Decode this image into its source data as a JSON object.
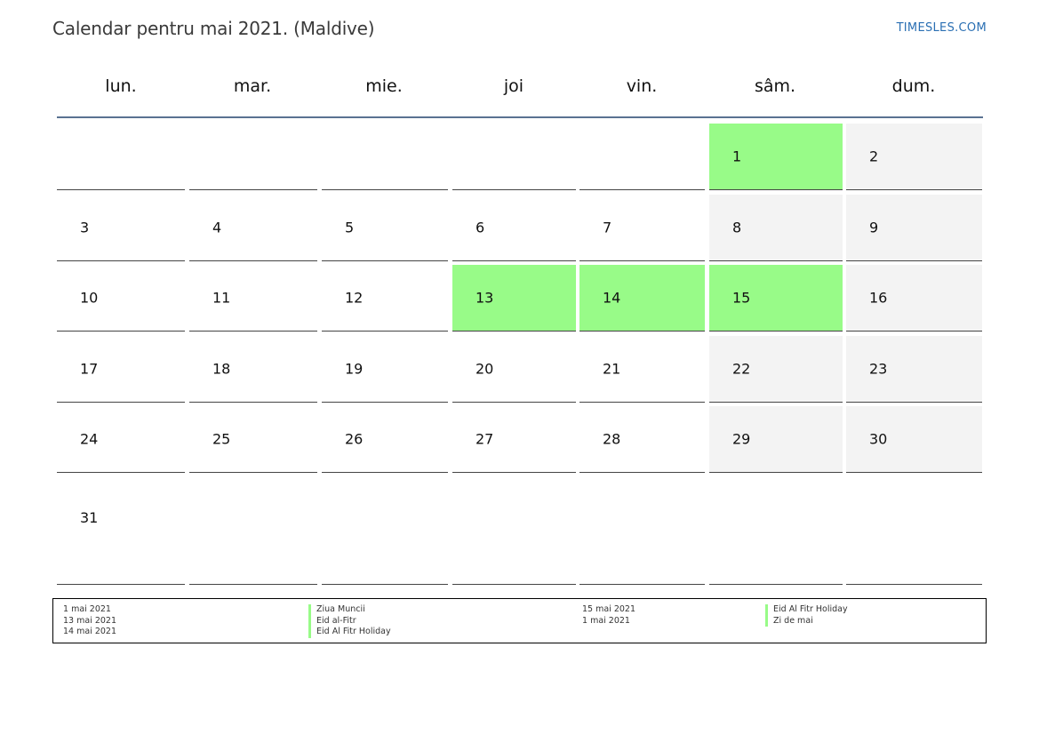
{
  "title": "Calendar pentru mai 2021. (Maldive)",
  "brand": "TIMESLES.COM",
  "weekdays": [
    "lun.",
    "mar.",
    "mie.",
    "joi",
    "vin.",
    "sâm.",
    "dum."
  ],
  "weeks": [
    [
      {
        "d": "",
        "t": "n"
      },
      {
        "d": "",
        "t": "n"
      },
      {
        "d": "",
        "t": "n"
      },
      {
        "d": "",
        "t": "n"
      },
      {
        "d": "",
        "t": "n"
      },
      {
        "d": "1",
        "t": "h"
      },
      {
        "d": "2",
        "t": "w"
      }
    ],
    [
      {
        "d": "3",
        "t": "n"
      },
      {
        "d": "4",
        "t": "n"
      },
      {
        "d": "5",
        "t": "n"
      },
      {
        "d": "6",
        "t": "n"
      },
      {
        "d": "7",
        "t": "n"
      },
      {
        "d": "8",
        "t": "w"
      },
      {
        "d": "9",
        "t": "w"
      }
    ],
    [
      {
        "d": "10",
        "t": "n"
      },
      {
        "d": "11",
        "t": "n"
      },
      {
        "d": "12",
        "t": "n"
      },
      {
        "d": "13",
        "t": "h"
      },
      {
        "d": "14",
        "t": "h"
      },
      {
        "d": "15",
        "t": "h"
      },
      {
        "d": "16",
        "t": "w"
      }
    ],
    [
      {
        "d": "17",
        "t": "n"
      },
      {
        "d": "18",
        "t": "n"
      },
      {
        "d": "19",
        "t": "n"
      },
      {
        "d": "20",
        "t": "n"
      },
      {
        "d": "21",
        "t": "n"
      },
      {
        "d": "22",
        "t": "w"
      },
      {
        "d": "23",
        "t": "w"
      }
    ],
    [
      {
        "d": "24",
        "t": "n"
      },
      {
        "d": "25",
        "t": "n"
      },
      {
        "d": "26",
        "t": "n"
      },
      {
        "d": "27",
        "t": "n"
      },
      {
        "d": "28",
        "t": "n"
      },
      {
        "d": "29",
        "t": "w"
      },
      {
        "d": "30",
        "t": "w"
      }
    ],
    [
      {
        "d": "31",
        "t": "n"
      },
      {
        "d": "",
        "t": "n"
      },
      {
        "d": "",
        "t": "n"
      },
      {
        "d": "",
        "t": "n"
      },
      {
        "d": "",
        "t": "n"
      },
      {
        "d": "",
        "t": "n"
      },
      {
        "d": "",
        "t": "n"
      }
    ]
  ],
  "legend": {
    "left_dates": [
      "1 mai 2021",
      "13 mai 2021",
      "14 mai 2021"
    ],
    "left_names": [
      "Ziua Muncii",
      "Eid al-Fitr",
      "Eid Al Fitr Holiday"
    ],
    "right_dates": [
      "15 mai 2021",
      "1 mai 2021"
    ],
    "right_names": [
      "Eid Al Fitr Holiday",
      "Zi de mai"
    ]
  },
  "colors": {
    "holiday": "#98fb88",
    "weekend": "#f3f3f3",
    "header_line": "#5a7291",
    "brand": "#2a6fb3"
  }
}
